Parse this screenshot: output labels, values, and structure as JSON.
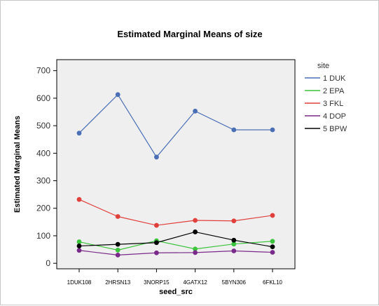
{
  "chart_data": {
    "type": "line",
    "title": "Estimated Marginal Means of size",
    "xlabel": "seed_src",
    "ylabel": "Estimated Marginal Means",
    "categories": [
      "1DUK108",
      "2HRSN13",
      "3NORP15",
      "4GATX12",
      "5BYN306",
      "6FKL10"
    ],
    "ylim": [
      -20,
      740
    ],
    "yticks": [
      0,
      100,
      200,
      300,
      400,
      500,
      600,
      700
    ],
    "grid": false,
    "legend_title": "site",
    "legend_position": "right",
    "series": [
      {
        "name": "1 DUK",
        "color": "#4a6fb5",
        "values": [
          473,
          613,
          386,
          553,
          485,
          485
        ]
      },
      {
        "name": "2 EPA",
        "color": "#3cc43c",
        "values": [
          78,
          48,
          82,
          52,
          70,
          80
        ]
      },
      {
        "name": "3 FKL",
        "color": "#e0403c",
        "values": [
          232,
          170,
          138,
          156,
          154,
          174
        ]
      },
      {
        "name": "4 DOP",
        "color": "#7a2a8a",
        "values": [
          47,
          30,
          38,
          39,
          45,
          40
        ]
      },
      {
        "name": "5 BPW",
        "color": "#000000",
        "values": [
          63,
          69,
          75,
          114,
          84,
          60
        ]
      }
    ]
  }
}
